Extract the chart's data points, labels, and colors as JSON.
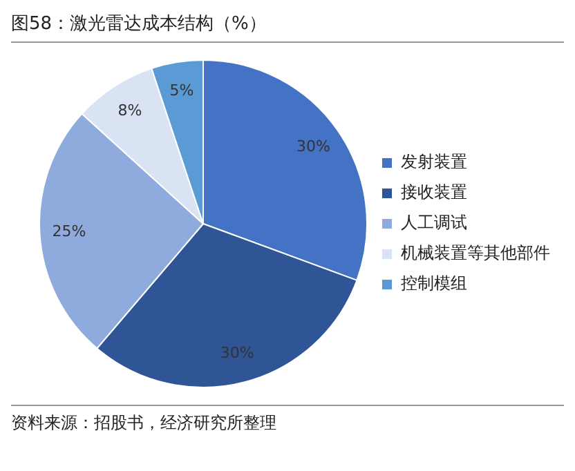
{
  "chart_data": {
    "type": "pie",
    "title": "图58：激光雷达成本结构（%）",
    "categories": [
      "发射装置",
      "接收装置",
      "人工调试",
      "机械装置等其他部件",
      "控制模组"
    ],
    "values": [
      30,
      30,
      25,
      8,
      5
    ],
    "value_labels": [
      "30%",
      "30%",
      "25%",
      "8%",
      "5%"
    ],
    "colors": [
      "#4472c4",
      "#2f5597",
      "#8faadc",
      "#dae3f3",
      "#5b9bd5"
    ],
    "legend": "right",
    "annotations": [
      "资料来源：招股书，经济研究所整理"
    ]
  }
}
